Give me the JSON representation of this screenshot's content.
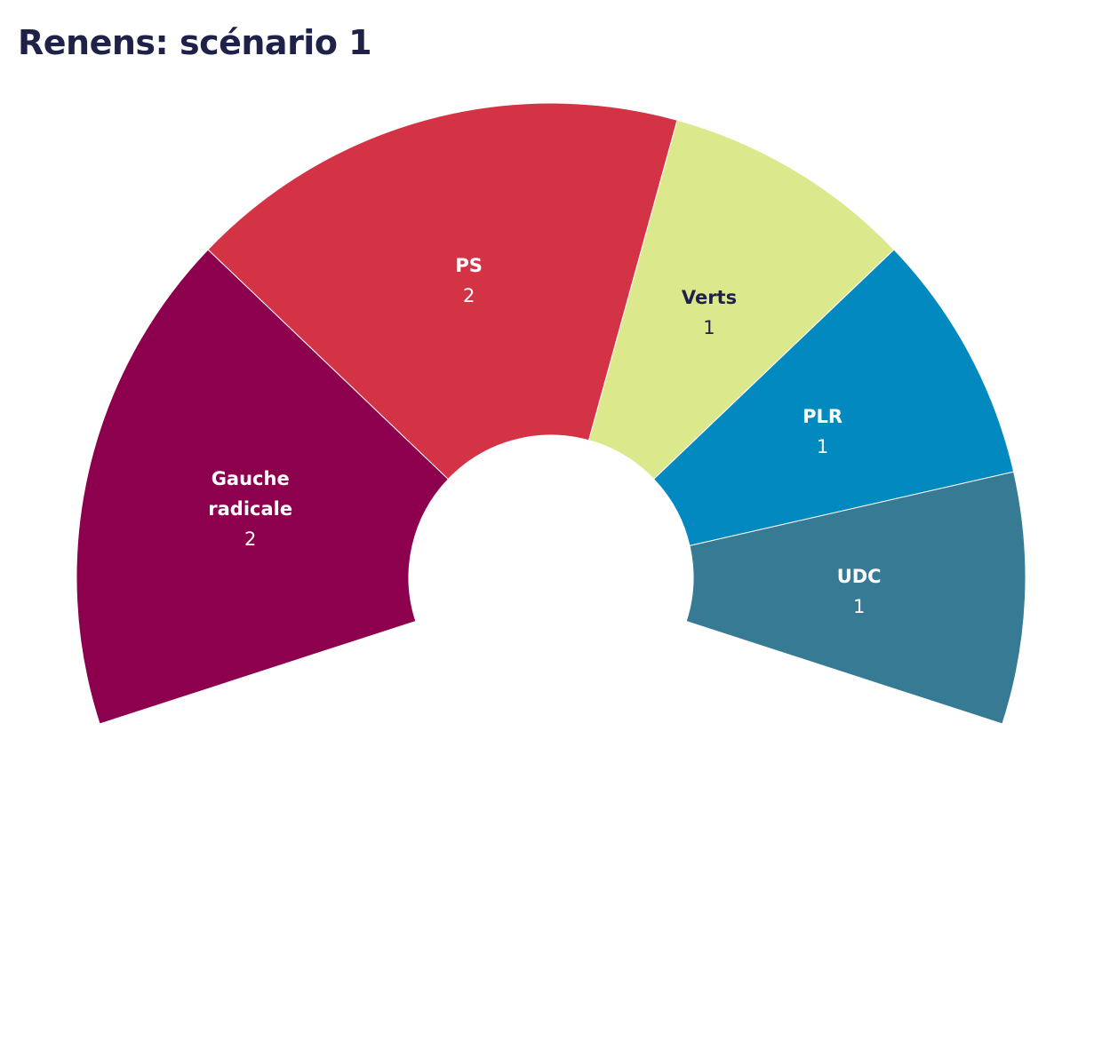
{
  "chart_data": {
    "type": "parliament",
    "title": "Renens: scénario 1",
    "categories": [
      "Gauche radicale",
      "PS",
      "Verts",
      "PLR",
      "UDC"
    ],
    "values": [
      2,
      2,
      1,
      1,
      1
    ],
    "colors": [
      "#8c004e",
      "#d43345",
      "#dce88c",
      "#0289bf",
      "#377a94"
    ]
  }
}
